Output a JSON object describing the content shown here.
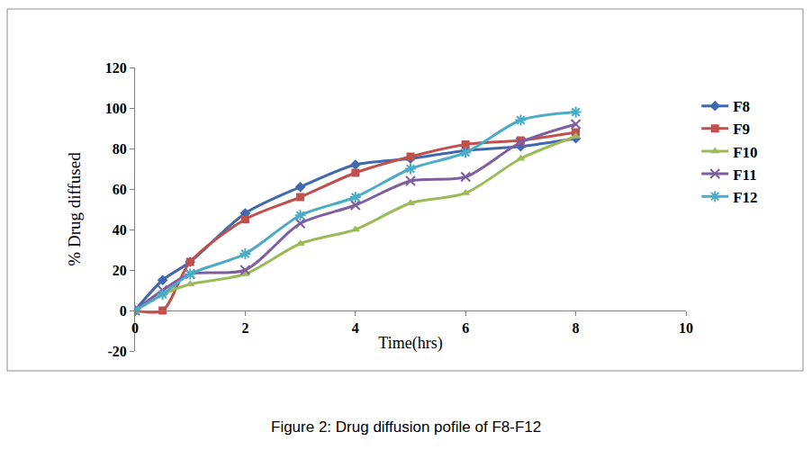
{
  "chart_data": {
    "type": "line",
    "title": "Figure 2: Drug diffusion pofile of F8-F12",
    "x_label": "Time(hrs)",
    "y_label": "% Drug diffused",
    "x": [
      0,
      0.5,
      1,
      2,
      3,
      4,
      5,
      6,
      7,
      8
    ],
    "series": [
      {
        "name": "F8",
        "color": "#3f68b0",
        "marker": "diamond",
        "values": [
          0,
          15,
          24,
          48,
          61,
          72,
          75,
          79,
          81,
          85
        ]
      },
      {
        "name": "F9",
        "color": "#c0504d",
        "marker": "square",
        "values": [
          0,
          0,
          24,
          45,
          56,
          68,
          76,
          82,
          84,
          88
        ]
      },
      {
        "name": "F10",
        "color": "#9bbb59",
        "marker": "triangle",
        "values": [
          0,
          8,
          13,
          18,
          33,
          40,
          53,
          58,
          75,
          86
        ]
      },
      {
        "name": "F11",
        "color": "#7d5fa0",
        "marker": "x",
        "values": [
          0,
          10,
          18,
          20,
          43,
          52,
          64,
          66,
          83,
          92
        ]
      },
      {
        "name": "F12",
        "color": "#4bacc6",
        "marker": "star",
        "values": [
          0,
          8,
          18,
          28,
          47,
          56,
          70,
          78,
          94,
          98
        ]
      }
    ],
    "xlim": [
      0,
      10
    ],
    "ylim": [
      -20,
      120
    ],
    "xticks": [
      0,
      2,
      4,
      6,
      8,
      10
    ],
    "yticks": [
      -20,
      0,
      20,
      40,
      60,
      80,
      100,
      120
    ],
    "grid": false,
    "legend": "right",
    "line_style": "smooth"
  }
}
